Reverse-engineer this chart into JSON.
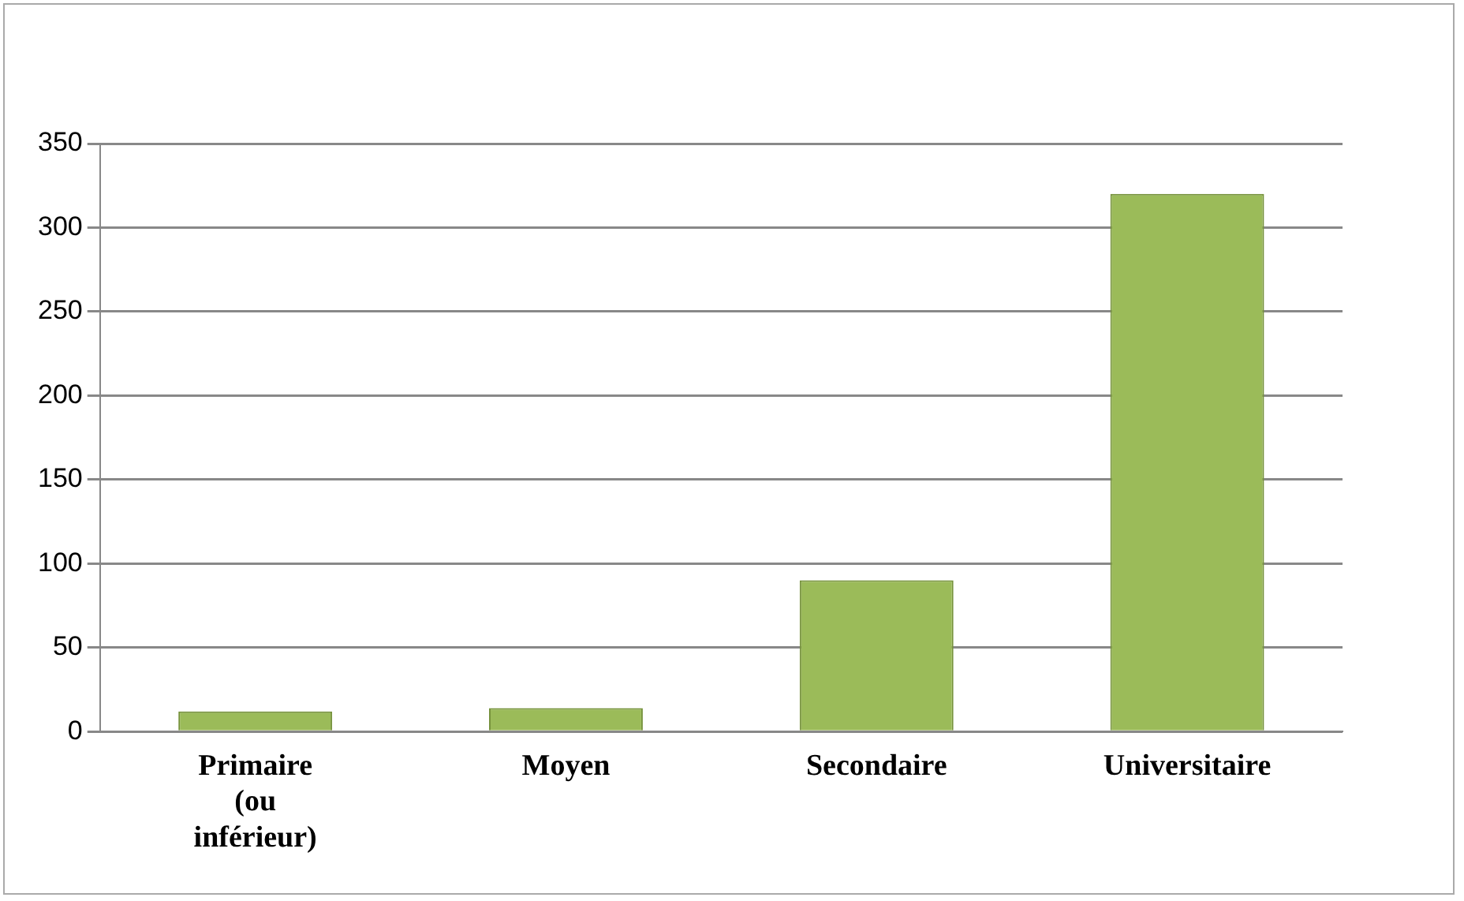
{
  "chart_data": {
    "type": "bar",
    "categories": [
      "Primaire (ou inférieur)",
      "Moyen",
      "Secondaire",
      "Universitaire"
    ],
    "values": [
      12,
      14,
      90,
      320
    ],
    "color": "#9bbb59",
    "ylim": [
      0,
      350
    ],
    "yticks": [
      0,
      50,
      100,
      150,
      200,
      250,
      300,
      350
    ],
    "grid": "y"
  }
}
